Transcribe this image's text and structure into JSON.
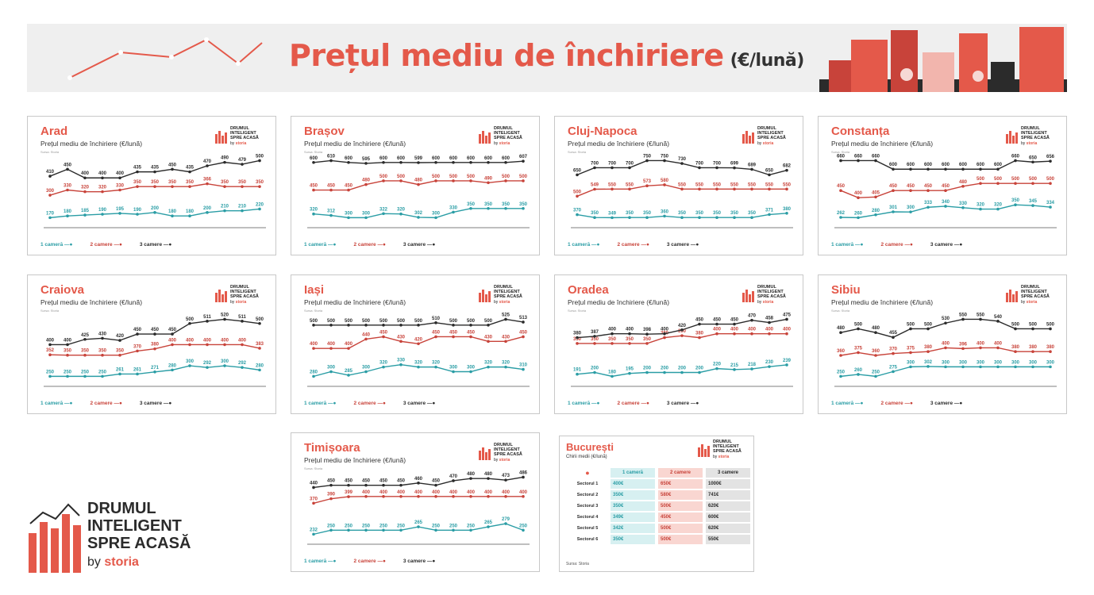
{
  "header": {
    "title": "Prețul mediu de închiriere",
    "unit": "(€/lună)"
  },
  "colors": {
    "accent": "#e4594a",
    "c1": "#2a9da5",
    "c2": "#c8433a",
    "c3": "#2b2b2b"
  },
  "brand": {
    "line1": "DRUMUL",
    "line2": "INTELIGENT",
    "line3": "SPRE ACASĂ",
    "by": "by",
    "name": "storia"
  },
  "legend": {
    "s1": "1 cameră",
    "s2": "2 camere",
    "s3": "3 camere"
  },
  "subtitle": "Prețul mediu de închiriere (€/lună)",
  "source": "Sursa: Storia",
  "chart_data": [
    {
      "type": "line",
      "title": "Arad",
      "subtitle": "Prețul mediu de închiriere (€/lună)",
      "series": [
        {
          "name": "1 cameră",
          "values": [
            170,
            180,
            185,
            190,
            195,
            190,
            200,
            180,
            180,
            200,
            210,
            210,
            220
          ]
        },
        {
          "name": "2 camere",
          "values": [
            300,
            330,
            320,
            320,
            330,
            350,
            350,
            350,
            350,
            366,
            350,
            350,
            350
          ]
        },
        {
          "name": "3 camere",
          "values": [
            410,
            450,
            400,
            400,
            400,
            435,
            435,
            450,
            435,
            470,
            490,
            479,
            500
          ]
        }
      ]
    },
    {
      "type": "line",
      "title": "Brașov",
      "subtitle": "Prețul mediu de închiriere (€/lună)",
      "series": [
        {
          "name": "1 cameră",
          "values": [
            320,
            312,
            300,
            300,
            322,
            320,
            302,
            300,
            330,
            350,
            350,
            350,
            350
          ]
        },
        {
          "name": "2 camere",
          "values": [
            450,
            450,
            450,
            480,
            500,
            500,
            480,
            500,
            500,
            500,
            490,
            500,
            500
          ]
        },
        {
          "name": "3 camere",
          "values": [
            600,
            610,
            600,
            595,
            600,
            600,
            599,
            600,
            600,
            600,
            600,
            600,
            607
          ]
        }
      ]
    },
    {
      "type": "line",
      "title": "Cluj-Napoca",
      "subtitle": "Prețul mediu de închiriere (€/lună)",
      "series": [
        {
          "name": "1 cameră",
          "values": [
            370,
            350,
            349,
            350,
            350,
            360,
            350,
            350,
            350,
            350,
            350,
            371,
            380
          ]
        },
        {
          "name": "2 camere",
          "values": [
            500,
            549,
            550,
            550,
            573,
            580,
            550,
            550,
            550,
            550,
            550,
            550,
            550
          ]
        },
        {
          "name": "3 camere",
          "values": [
            650,
            700,
            700,
            700,
            750,
            750,
            730,
            700,
            700,
            699,
            689,
            650,
            682
          ]
        }
      ]
    },
    {
      "type": "line",
      "title": "Constanța",
      "subtitle": "Prețul mediu de închiriere (€/lună)",
      "series": [
        {
          "name": "1 cameră",
          "values": [
            262,
            260,
            280,
            301,
            300,
            333,
            340,
            330,
            320,
            320,
            350,
            345,
            334
          ]
        },
        {
          "name": "2 camere",
          "values": [
            450,
            400,
            405,
            450,
            450,
            450,
            450,
            480,
            500,
            500,
            500,
            500,
            500
          ]
        },
        {
          "name": "3 camere",
          "values": [
            660,
            660,
            660,
            600,
            600,
            600,
            600,
            600,
            600,
            600,
            660,
            650,
            656
          ]
        }
      ]
    },
    {
      "type": "line",
      "title": "Craiova",
      "subtitle": "Prețul mediu de închiriere (€/lună)",
      "series": [
        {
          "name": "1 cameră",
          "values": [
            250,
            250,
            250,
            250,
            261,
            261,
            271,
            280,
            300,
            292,
            300,
            292,
            280
          ]
        },
        {
          "name": "2 camere",
          "values": [
            352,
            350,
            350,
            350,
            350,
            370,
            380,
            400,
            400,
            400,
            400,
            400,
            383
          ]
        },
        {
          "name": "3 camere",
          "values": [
            400,
            400,
            425,
            430,
            420,
            450,
            450,
            450,
            500,
            511,
            520,
            511,
            500
          ]
        }
      ]
    },
    {
      "type": "line",
      "title": "Iași",
      "subtitle": "Prețul mediu de închiriere (€/lună)",
      "series": [
        {
          "name": "1 cameră",
          "values": [
            280,
            300,
            285,
            300,
            320,
            330,
            320,
            320,
            300,
            300,
            320,
            320,
            310
          ]
        },
        {
          "name": "2 camere",
          "values": [
            400,
            400,
            400,
            440,
            450,
            430,
            420,
            450,
            450,
            450,
            430,
            430,
            450
          ]
        },
        {
          "name": "3 camere",
          "values": [
            500,
            500,
            500,
            500,
            500,
            500,
            500,
            510,
            500,
            500,
            500,
            525,
            513
          ]
        }
      ]
    },
    {
      "type": "line",
      "title": "Oradea",
      "subtitle": "Prețul mediu de închiriere (€/lună)",
      "series": [
        {
          "name": "1 cameră",
          "values": [
            191,
            200,
            180,
            195,
            200,
            200,
            200,
            200,
            220,
            215,
            218,
            230,
            239
          ]
        },
        {
          "name": "2 camere",
          "values": [
            350,
            350,
            350,
            350,
            350,
            380,
            390,
            380,
            400,
            400,
            400,
            400,
            400
          ]
        },
        {
          "name": "3 camere",
          "values": [
            380,
            387,
            400,
            400,
            398,
            400,
            420,
            450,
            450,
            450,
            470,
            458,
            475
          ]
        }
      ]
    },
    {
      "type": "line",
      "title": "Sibiu",
      "subtitle": "Prețul mediu de închiriere (€/lună)",
      "series": [
        {
          "name": "1 cameră",
          "values": [
            250,
            260,
            250,
            275,
            300,
            302,
            300,
            300,
            300,
            300,
            300,
            300,
            300
          ]
        },
        {
          "name": "2 camere",
          "values": [
            360,
            375,
            360,
            370,
            375,
            380,
            400,
            396,
            400,
            400,
            380,
            380,
            380
          ]
        },
        {
          "name": "3 camere",
          "values": [
            480,
            500,
            480,
            455,
            500,
            500,
            530,
            550,
            550,
            540,
            500,
            500,
            500
          ]
        }
      ]
    },
    {
      "type": "line",
      "title": "Timișoara",
      "subtitle": "Prețul mediu de închiriere (€/lună)",
      "series": [
        {
          "name": "1 cameră",
          "values": [
            232,
            250,
            250,
            250,
            250,
            250,
            265,
            250,
            250,
            250,
            265,
            279,
            250
          ]
        },
        {
          "name": "2 camere",
          "values": [
            370,
            390,
            399,
            400,
            400,
            400,
            400,
            400,
            400,
            400,
            400,
            400,
            400
          ]
        },
        {
          "name": "3 camere",
          "values": [
            440,
            450,
            450,
            450,
            450,
            450,
            460,
            450,
            470,
            480,
            480,
            473,
            486
          ]
        }
      ]
    },
    {
      "type": "table",
      "title": "București",
      "subtitle": "Chirii medii (€/lună)",
      "columns": [
        "1 cameră",
        "2 camere",
        "3 camere"
      ],
      "rows": [
        {
          "label": "Sectorul 1",
          "values": [
            "400€",
            "650€",
            "1000€"
          ]
        },
        {
          "label": "Sectorul 2",
          "values": [
            "350€",
            "580€",
            "741€"
          ]
        },
        {
          "label": "Sectorul 3",
          "values": [
            "350€",
            "500€",
            "620€"
          ]
        },
        {
          "label": "Sectorul 4",
          "values": [
            "349€",
            "450€",
            "600€"
          ]
        },
        {
          "label": "Sectorul 5",
          "values": [
            "342€",
            "500€",
            "620€"
          ]
        },
        {
          "label": "Sectorul 6",
          "values": [
            "350€",
            "500€",
            "550€"
          ]
        }
      ],
      "source": "Sursa: Storia"
    }
  ]
}
